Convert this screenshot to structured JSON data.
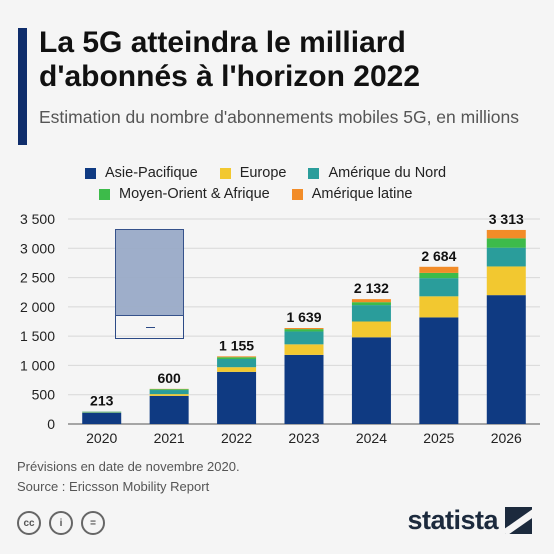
{
  "header": {
    "title": "La 5G atteindra le milliard d'abonnés à l'horizon 2022",
    "subtitle": "Estimation du nombre d'abonnements mobiles 5G, en millions",
    "accent_color": "#0f2d6b"
  },
  "chart_data": {
    "type": "bar",
    "stacked": true,
    "categories": [
      "2020",
      "2021",
      "2022",
      "2023",
      "2024",
      "2025",
      "2026"
    ],
    "series": [
      {
        "name": "Asie-Pacifique",
        "color": "#0f3a82",
        "values": [
          190,
          480,
          890,
          1180,
          1480,
          1820,
          2200
        ]
      },
      {
        "name": "Europe",
        "color": "#f2c830",
        "values": [
          5,
          30,
          80,
          180,
          270,
          360,
          490
        ]
      },
      {
        "name": "Amérique du Nord",
        "color": "#2a9d9b",
        "values": [
          15,
          70,
          140,
          220,
          280,
          310,
          320
        ]
      },
      {
        "name": "Moyen-Orient & Afrique",
        "color": "#3dbb4a",
        "values": [
          2,
          15,
          30,
          40,
          50,
          90,
          160
        ]
      },
      {
        "name": "Amérique latine",
        "color": "#f28c28",
        "values": [
          1,
          5,
          15,
          19,
          52,
          104,
          143
        ]
      }
    ],
    "totals": [
      "213",
      "600",
      "1 155",
      "1 639",
      "2 132",
      "2 684",
      "3 313"
    ],
    "yticks": [
      "0",
      "500",
      "1 000",
      "1 500",
      "2 000",
      "2 500",
      "3 000",
      "3 500"
    ],
    "ylim": [
      0,
      3500
    ],
    "grid": true,
    "legend_position": "top"
  },
  "footer": {
    "note": "Prévisions en date de novembre 2020.",
    "source": "Source : Ericsson Mobility Report"
  },
  "license_icons": [
    {
      "icon": "cc-icon",
      "text": "cc"
    },
    {
      "icon": "person-icon",
      "text": "i"
    },
    {
      "icon": "equals-icon",
      "text": "="
    }
  ],
  "brand": {
    "name": "statista"
  }
}
